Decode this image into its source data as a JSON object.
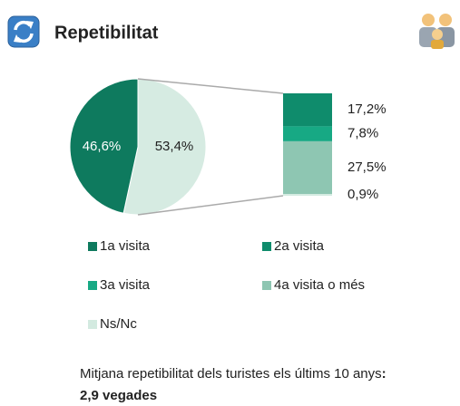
{
  "chart_data": {
    "type": "pie_of_bar",
    "title": "Repetibilitat",
    "categories": [
      "1a visita",
      "2a visita",
      "3a visita",
      "4a visita o més",
      "Ns/Nc"
    ],
    "colors": [
      "#0e7a5e",
      "#0f8c6c",
      "#17a984",
      "#8ec6b2",
      "#d3eae0"
    ],
    "values": [
      46.6,
      17.2,
      7.8,
      27.5,
      0.9
    ],
    "value_labels": [
      "46,6%",
      "17,2%",
      "7,8%",
      "27,5%",
      "0,9%"
    ],
    "other_value": 53.4,
    "other_label": "53,4%",
    "other_color": "#d6ebe2",
    "note": "Mitjana repetibilitat dels turistes els últims 10 anys",
    "note_emphasis": ": 2,9 vegades"
  }
}
